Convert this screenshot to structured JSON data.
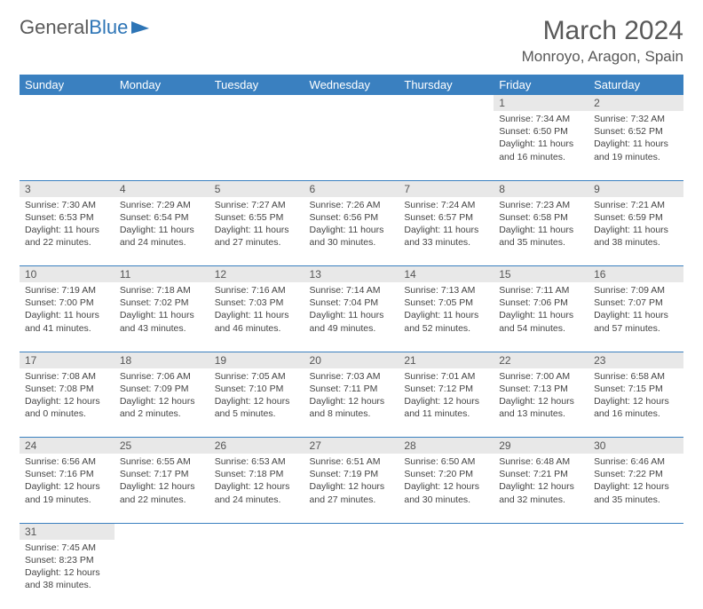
{
  "logo": {
    "text1": "General",
    "text2": "Blue"
  },
  "title": "March 2024",
  "location": "Monroyo, Aragon, Spain",
  "day_headers": [
    "Sunday",
    "Monday",
    "Tuesday",
    "Wednesday",
    "Thursday",
    "Friday",
    "Saturday"
  ],
  "colors": {
    "header_bg": "#3a80c0",
    "header_text": "#ffffff",
    "daynum_bg": "#e8e8e8",
    "rule": "#3a80c0",
    "body_text": "#444444",
    "title_text": "#595959"
  },
  "weeks": [
    [
      null,
      null,
      null,
      null,
      null,
      {
        "n": "1",
        "sr": "7:34 AM",
        "ss": "6:50 PM",
        "dl": "11 hours and 16 minutes."
      },
      {
        "n": "2",
        "sr": "7:32 AM",
        "ss": "6:52 PM",
        "dl": "11 hours and 19 minutes."
      }
    ],
    [
      {
        "n": "3",
        "sr": "7:30 AM",
        "ss": "6:53 PM",
        "dl": "11 hours and 22 minutes."
      },
      {
        "n": "4",
        "sr": "7:29 AM",
        "ss": "6:54 PM",
        "dl": "11 hours and 24 minutes."
      },
      {
        "n": "5",
        "sr": "7:27 AM",
        "ss": "6:55 PM",
        "dl": "11 hours and 27 minutes."
      },
      {
        "n": "6",
        "sr": "7:26 AM",
        "ss": "6:56 PM",
        "dl": "11 hours and 30 minutes."
      },
      {
        "n": "7",
        "sr": "7:24 AM",
        "ss": "6:57 PM",
        "dl": "11 hours and 33 minutes."
      },
      {
        "n": "8",
        "sr": "7:23 AM",
        "ss": "6:58 PM",
        "dl": "11 hours and 35 minutes."
      },
      {
        "n": "9",
        "sr": "7:21 AM",
        "ss": "6:59 PM",
        "dl": "11 hours and 38 minutes."
      }
    ],
    [
      {
        "n": "10",
        "sr": "7:19 AM",
        "ss": "7:00 PM",
        "dl": "11 hours and 41 minutes."
      },
      {
        "n": "11",
        "sr": "7:18 AM",
        "ss": "7:02 PM",
        "dl": "11 hours and 43 minutes."
      },
      {
        "n": "12",
        "sr": "7:16 AM",
        "ss": "7:03 PM",
        "dl": "11 hours and 46 minutes."
      },
      {
        "n": "13",
        "sr": "7:14 AM",
        "ss": "7:04 PM",
        "dl": "11 hours and 49 minutes."
      },
      {
        "n": "14",
        "sr": "7:13 AM",
        "ss": "7:05 PM",
        "dl": "11 hours and 52 minutes."
      },
      {
        "n": "15",
        "sr": "7:11 AM",
        "ss": "7:06 PM",
        "dl": "11 hours and 54 minutes."
      },
      {
        "n": "16",
        "sr": "7:09 AM",
        "ss": "7:07 PM",
        "dl": "11 hours and 57 minutes."
      }
    ],
    [
      {
        "n": "17",
        "sr": "7:08 AM",
        "ss": "7:08 PM",
        "dl": "12 hours and 0 minutes."
      },
      {
        "n": "18",
        "sr": "7:06 AM",
        "ss": "7:09 PM",
        "dl": "12 hours and 2 minutes."
      },
      {
        "n": "19",
        "sr": "7:05 AM",
        "ss": "7:10 PM",
        "dl": "12 hours and 5 minutes."
      },
      {
        "n": "20",
        "sr": "7:03 AM",
        "ss": "7:11 PM",
        "dl": "12 hours and 8 minutes."
      },
      {
        "n": "21",
        "sr": "7:01 AM",
        "ss": "7:12 PM",
        "dl": "12 hours and 11 minutes."
      },
      {
        "n": "22",
        "sr": "7:00 AM",
        "ss": "7:13 PM",
        "dl": "12 hours and 13 minutes."
      },
      {
        "n": "23",
        "sr": "6:58 AM",
        "ss": "7:15 PM",
        "dl": "12 hours and 16 minutes."
      }
    ],
    [
      {
        "n": "24",
        "sr": "6:56 AM",
        "ss": "7:16 PM",
        "dl": "12 hours and 19 minutes."
      },
      {
        "n": "25",
        "sr": "6:55 AM",
        "ss": "7:17 PM",
        "dl": "12 hours and 22 minutes."
      },
      {
        "n": "26",
        "sr": "6:53 AM",
        "ss": "7:18 PM",
        "dl": "12 hours and 24 minutes."
      },
      {
        "n": "27",
        "sr": "6:51 AM",
        "ss": "7:19 PM",
        "dl": "12 hours and 27 minutes."
      },
      {
        "n": "28",
        "sr": "6:50 AM",
        "ss": "7:20 PM",
        "dl": "12 hours and 30 minutes."
      },
      {
        "n": "29",
        "sr": "6:48 AM",
        "ss": "7:21 PM",
        "dl": "12 hours and 32 minutes."
      },
      {
        "n": "30",
        "sr": "6:46 AM",
        "ss": "7:22 PM",
        "dl": "12 hours and 35 minutes."
      }
    ],
    [
      {
        "n": "31",
        "sr": "7:45 AM",
        "ss": "8:23 PM",
        "dl": "12 hours and 38 minutes."
      },
      null,
      null,
      null,
      null,
      null,
      null
    ]
  ],
  "labels": {
    "sunrise": "Sunrise:",
    "sunset": "Sunset:",
    "daylight": "Daylight:"
  }
}
